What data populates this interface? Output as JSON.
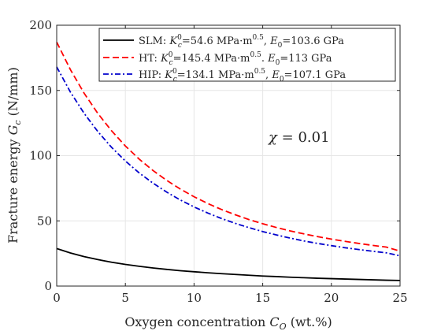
{
  "chart_data": {
    "type": "line",
    "title": "",
    "xlabel": "Oxygen concentration C_O (wt.%)",
    "ylabel": "Fracture energy G_c (N/mm)",
    "xlim": [
      0,
      25
    ],
    "ylim": [
      0,
      200
    ],
    "xticks": [
      0,
      5,
      10,
      15,
      20,
      25
    ],
    "yticks": [
      0,
      50,
      100,
      150,
      200
    ],
    "grid": true,
    "legend_position": "top-right",
    "annotation": "χ = 0.01",
    "x": [
      0,
      1,
      2,
      3,
      4,
      5,
      6,
      7,
      8,
      9,
      10,
      11,
      12,
      13,
      14,
      15,
      16,
      17,
      18,
      19,
      20,
      21,
      22,
      23,
      24,
      25
    ],
    "series": [
      {
        "name": "SLM: K_c^0=54.6 MPa·m^0.5, E_0=103.6 GPa",
        "color": "#000000",
        "dash": "solid",
        "values": [
          28.8,
          25.4,
          22.6,
          20.3,
          18.3,
          16.6,
          15.2,
          13.9,
          12.8,
          11.8,
          11.0,
          10.2,
          9.5,
          8.9,
          8.3,
          7.7,
          7.3,
          6.8,
          6.4,
          6.0,
          5.7,
          5.4,
          5.1,
          4.8,
          4.5,
          4.3
        ]
      },
      {
        "name": "HT: K_c^0=145.4 MPa·m^0.5, E_0=113 GPa",
        "color": "#ff0000",
        "dash": "dashed",
        "values": [
          187.1,
          165.9,
          147.8,
          132.3,
          119.0,
          107.4,
          97.4,
          88.7,
          81.1,
          74.4,
          68.5,
          63.3,
          58.7,
          54.7,
          51.0,
          47.8,
          44.9,
          42.3,
          40.0,
          37.9,
          36.0,
          34.3,
          32.7,
          31.2,
          29.9,
          26.8
        ]
      },
      {
        "name": "HIP: K_c^0=134.1 MPa·m^0.5, E_0=107.1 GPa",
        "color": "#0000cc",
        "dash": "dash-dot",
        "values": [
          168.0,
          148.7,
          132.4,
          118.4,
          106.3,
          95.9,
          86.8,
          79.0,
          72.1,
          66.0,
          60.7,
          56.0,
          51.8,
          48.1,
          44.8,
          41.8,
          39.2,
          36.8,
          34.6,
          32.7,
          31.0,
          29.4,
          28.0,
          26.7,
          25.5,
          23.2
        ]
      }
    ]
  },
  "labels": {
    "xlabel_main": "Oxygen concentration ",
    "xlabel_sym": "C",
    "xlabel_sub": "O",
    "xlabel_unit": " (wt.%)",
    "ylabel_main": "Fracture energy ",
    "ylabel_sym": "G",
    "ylabel_sub": "c",
    "ylabel_unit": " (N/mm)",
    "annotation_sym": "χ",
    "annotation_value": " = 0.01"
  },
  "legend": [
    {
      "prefix": "SLM: ",
      "k_sym": "K",
      "k_sup": "0",
      "k_sub": "c",
      "k_value": "=54.6 MPa·m",
      "k_exp": "0.5",
      "sep": ", ",
      "e_sym": "E",
      "e_sub": "0",
      "e_value": "=103.6 GPa"
    },
    {
      "prefix": "HT: ",
      "k_sym": "K",
      "k_sup": "0",
      "k_sub": "c",
      "k_value": "=145.4 MPa·m",
      "k_exp": "0.5",
      "sep": ". ",
      "e_sym": "E",
      "e_sub": "0",
      "e_value": "=113 GPa"
    },
    {
      "prefix": "HIP: ",
      "k_sym": "K",
      "k_sup": "0",
      "k_sub": "c",
      "k_value": "=134.1 MPa·m",
      "k_exp": "0.5",
      "sep": ", ",
      "e_sym": "E",
      "e_sub": "0",
      "e_value": "=107.1 GPa"
    }
  ]
}
